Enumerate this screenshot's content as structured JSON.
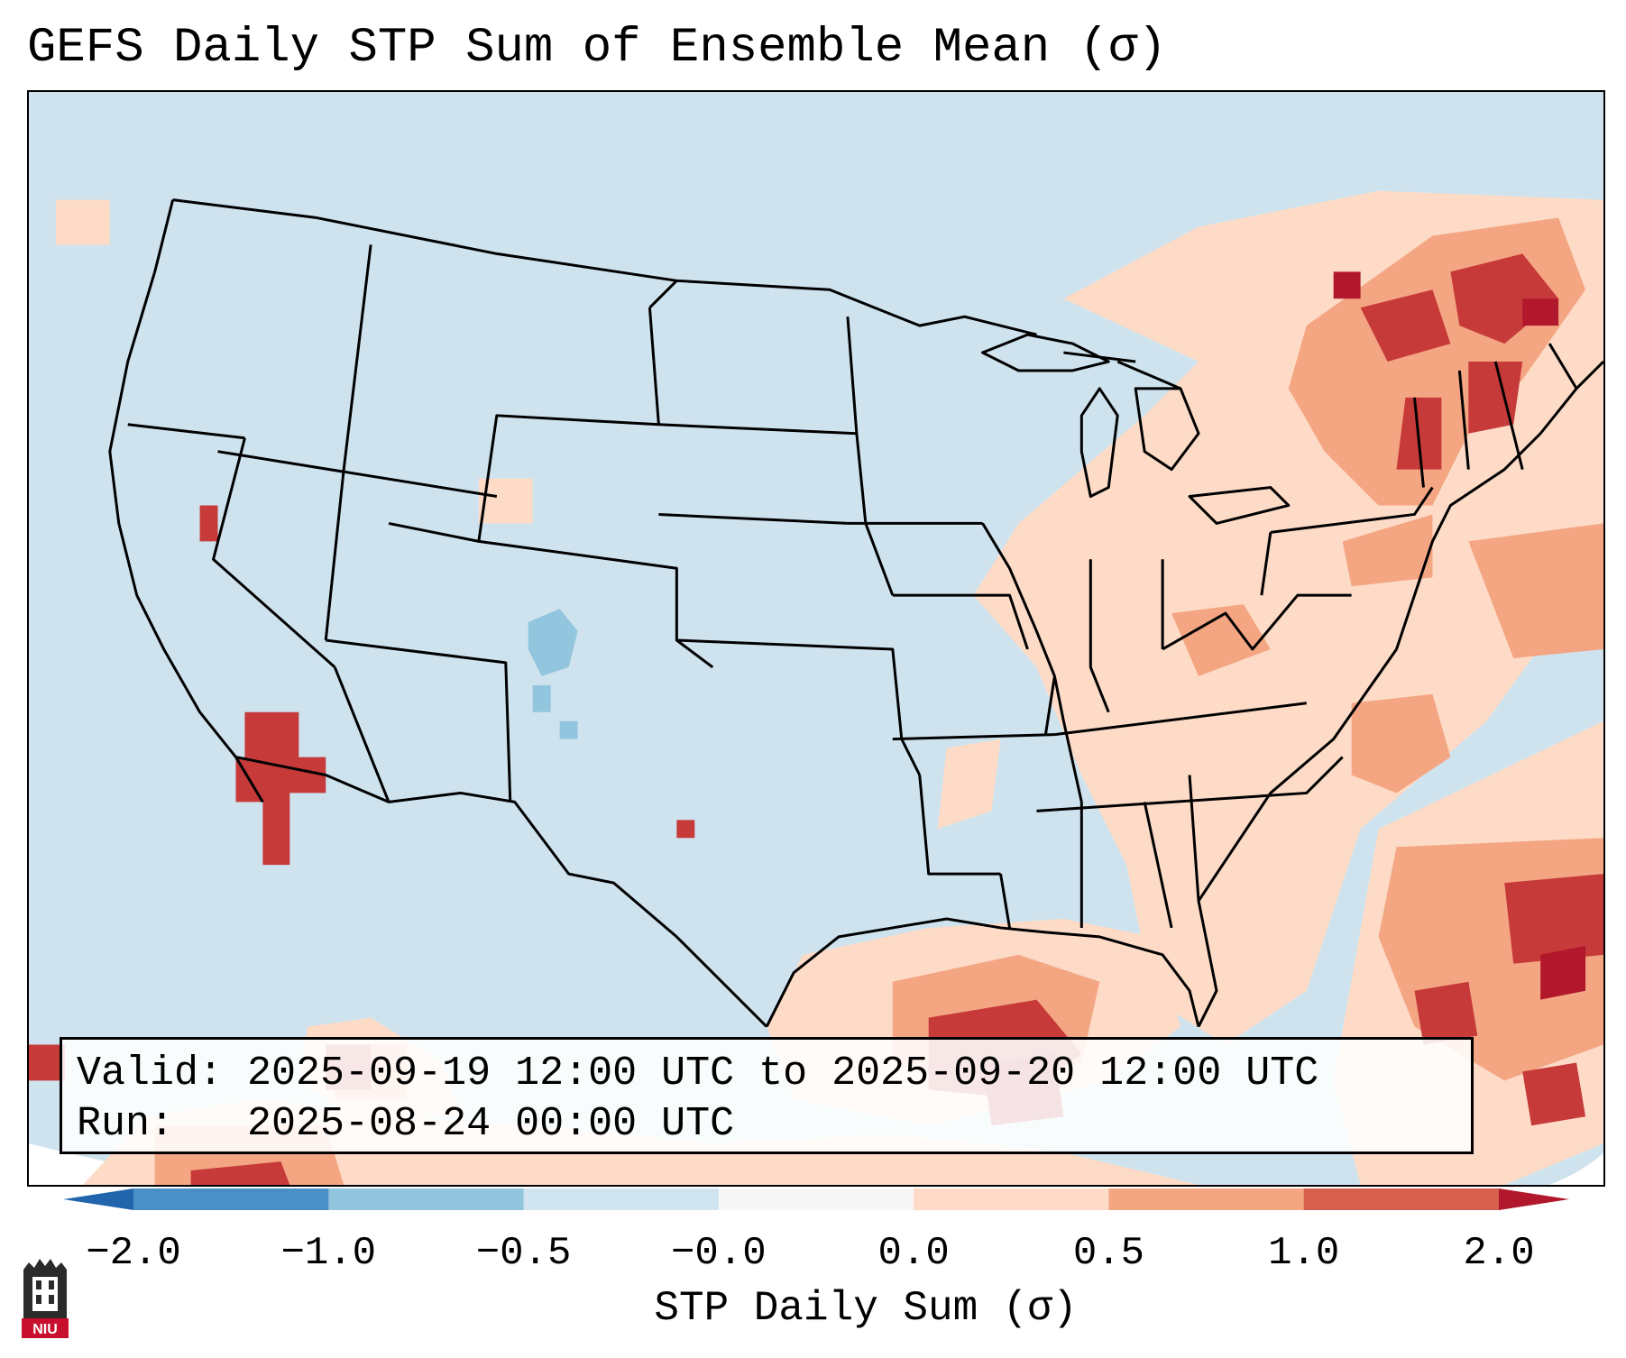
{
  "title": "GEFS Daily STP Sum of Ensemble Mean (σ)",
  "info": {
    "valid": "Valid: 2025-09-19 12:00 UTC to 2025-09-20 12:00 UTC",
    "run": "Run:   2025-08-24 00:00 UTC"
  },
  "colorbar": {
    "label": "STP Daily Sum (σ)",
    "ticks": [
      "−2.0",
      "−1.0",
      "−0.5",
      "−0.0",
      "0.0",
      "0.5",
      "1.0",
      "2.0"
    ],
    "colors": [
      "#4a90c6",
      "#92c5de",
      "#d1e5f0",
      "#f7f7f7",
      "#fddbc7",
      "#f4a582",
      "#d6604d"
    ],
    "under_color": "#2166ac",
    "over_color": "#b2182b"
  },
  "map": {
    "background_color": "#cfe3ef",
    "region": "Contiguous United States, southern Canada, northern Mexico, Gulf of Mexico, western Atlantic"
  },
  "logo": {
    "text": "NIU",
    "color": "#c8102e"
  }
}
